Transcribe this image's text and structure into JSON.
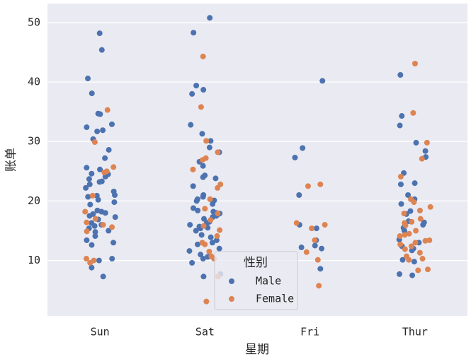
{
  "chart_data": {
    "type": "strip",
    "x_label": "星期",
    "y_label": "账单",
    "categories": [
      "Sun",
      "Sat",
      "Fri",
      "Thur"
    ],
    "ylim": [
      0.68,
      53.2
    ],
    "yticks": [
      10,
      20,
      30,
      40,
      50
    ],
    "grid": true,
    "legend_title": "性别",
    "legend_position": "lower center",
    "series": [
      {
        "name": "Male",
        "color": "#4c72b0",
        "values": [
          [
            48.2,
            45.4,
            40.6,
            38.1,
            34.7,
            34.6,
            32.4,
            32.9,
            31.9,
            31.7,
            30.4,
            28.6,
            27.2,
            25.6,
            25.3,
            24.6,
            24.1,
            23.7,
            23.3,
            23.2,
            22.8,
            22.2,
            21.6,
            21.0,
            20.7,
            20.2,
            19.8,
            19.4,
            18.4,
            18.2,
            18.0,
            17.8,
            17.5,
            17.3,
            16.9,
            16.3,
            16.0,
            15.8,
            15.4,
            15.0,
            14.8,
            14.1,
            13.4,
            13.0,
            12.6,
            10.3,
            10.0,
            8.8,
            7.3,
            20.9,
            24.5
          ],
          [
            50.8,
            48.3,
            39.4,
            38.7,
            38.0,
            32.8,
            31.3,
            30.1,
            29.0,
            28.2,
            26.6,
            25.9,
            24.3,
            24.0,
            23.8,
            21.0,
            20.7,
            20.3,
            20.0,
            19.5,
            18.8,
            18.4,
            18.2,
            18.0,
            17.9,
            17.8,
            17.5,
            17.3,
            16.5,
            16.3,
            16.0,
            15.7,
            15.4,
            15.0,
            14.3,
            13.9,
            13.0,
            12.7,
            12.0,
            11.6,
            11.0,
            10.6,
            10.3,
            9.6,
            7.7,
            7.3,
            13.4,
            15.5,
            17.0,
            22.5,
            20.1
          ],
          [
            40.2,
            28.9,
            27.3,
            21.0,
            15.4,
            13.4,
            12.5,
            12.0,
            12.2,
            8.6,
            16.0
          ],
          [
            41.2,
            34.3,
            32.7,
            29.8,
            28.4,
            27.4,
            24.7,
            23.0,
            22.8,
            21.0,
            20.3,
            19.5,
            18.3,
            17.8,
            16.6,
            16.4,
            15.5,
            15.0,
            13.5,
            13.0,
            12.4,
            11.7,
            10.1,
            9.8,
            7.5,
            7.7,
            16.0,
            12.0
          ]
        ]
      },
      {
        "name": "Female",
        "color": "#dd8452",
        "values": [
          [
            35.3,
            29.9,
            25.7,
            25.0,
            24.8,
            20.9,
            17.0,
            16.4,
            15.6,
            14.9,
            10.3,
            9.6,
            10.0,
            18.2,
            16.0
          ],
          [
            44.3,
            35.8,
            30.1,
            28.2,
            27.2,
            26.9,
            25.3,
            22.2,
            20.3,
            18.7,
            17.9,
            16.8,
            15.8,
            15.1,
            14.1,
            13.0,
            12.7,
            10.7,
            10.3,
            7.3,
            3.1,
            22.8,
            11.5
          ],
          [
            22.8,
            22.5,
            16.3,
            16.0,
            15.4,
            13.4,
            11.4,
            10.1,
            5.75
          ],
          [
            43.1,
            34.8,
            29.8,
            27.1,
            24.1,
            20.3,
            19.8,
            19.0,
            18.4,
            17.9,
            17.0,
            16.3,
            15.9,
            15.0,
            14.5,
            14.1,
            13.4,
            13.0,
            12.7,
            12.4,
            11.9,
            11.3,
            10.7,
            10.3,
            10.1,
            8.5,
            8.35,
            16.5,
            13.3,
            14.3
          ]
        ]
      }
    ]
  }
}
